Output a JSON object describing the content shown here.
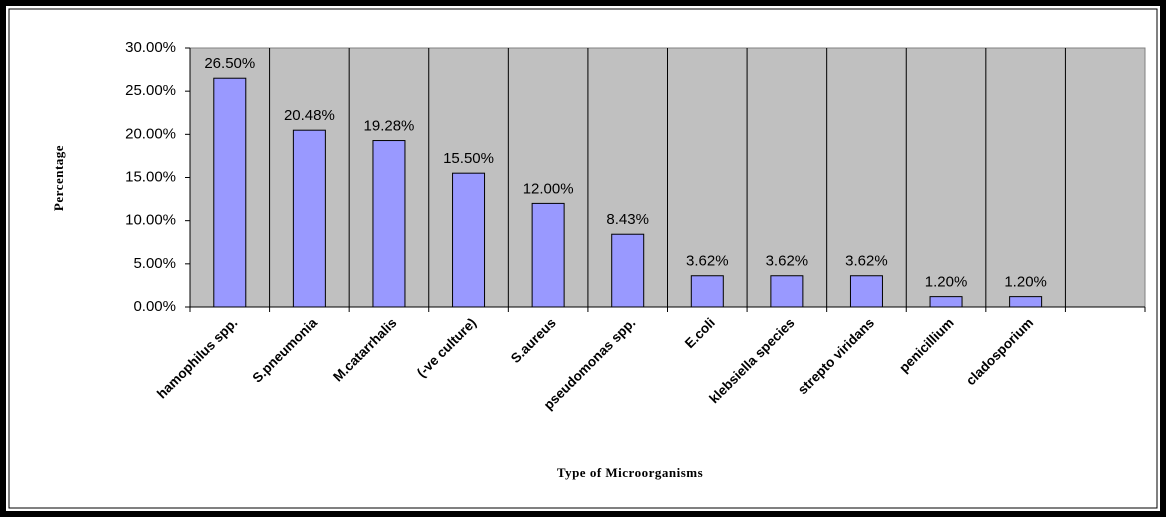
{
  "chart_data": {
    "type": "bar",
    "x_label": "Type of Microorganisms",
    "y_label": "Percentage",
    "categories": [
      "hamophilus spp.",
      "S.pneumonia",
      "M.catarrhalis",
      "(-ve culture)",
      "S.aureus",
      "pseudomonas spp.",
      "E.coli",
      "klebsiella species",
      "strepto viridans",
      "penicillium",
      "cladosporium",
      null
    ],
    "values": [
      26.5,
      20.48,
      19.28,
      15.5,
      12.0,
      8.43,
      3.62,
      3.62,
      3.62,
      1.2,
      1.2,
      null
    ],
    "value_labels": [
      "26.50%",
      "20.48%",
      "19.28%",
      "15.50%",
      "12.00%",
      "8.43%",
      "3.62%",
      "3.62%",
      "3.62%",
      "1.20%",
      "1.20%",
      null
    ],
    "color": "#9999ff",
    "ylim": [
      0,
      30
    ],
    "yticks": [
      {
        "value": 0,
        "label": "0.00%"
      },
      {
        "value": 5,
        "label": "5.00%"
      },
      {
        "value": 10,
        "label": "10.00%"
      },
      {
        "value": 15,
        "label": "15.00%"
      },
      {
        "value": 20,
        "label": "20.00%"
      },
      {
        "value": 25,
        "label": "25.00%"
      },
      {
        "value": 30,
        "label": "30.00%"
      }
    ],
    "grid": false
  }
}
